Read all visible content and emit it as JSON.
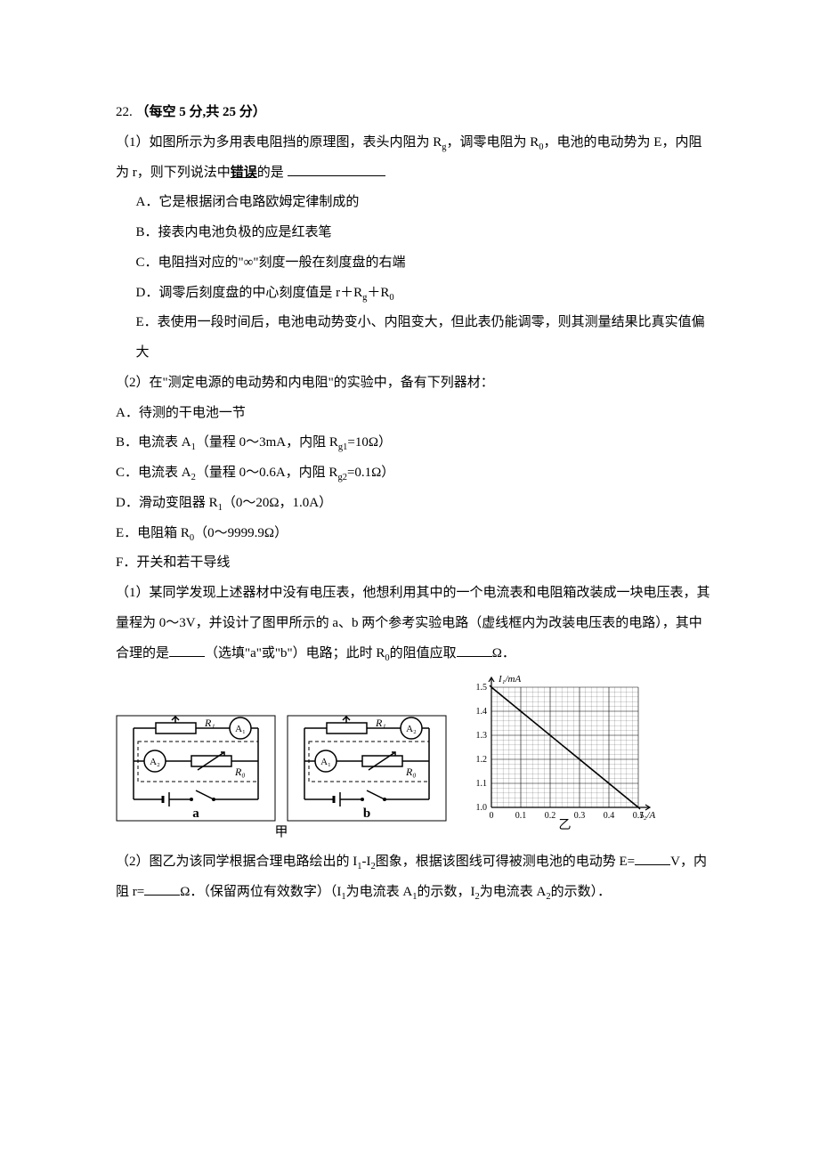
{
  "q": {
    "num": "22.",
    "score": "（每空 5 分,共 25 分）",
    "p1_intro": "（1）如图所示为多用表电阻挡的原理图，表头内阻为 R",
    "p1_sub1": "g",
    "p1_mid": "，调零电阻为 R",
    "p1_sub2": "0",
    "p1_mid2": "，电池的电动势为 E，内阻为 r，则下列说法中",
    "p1_bold": "错误",
    "p1_tail": "的是",
    "A": "A．它是根据闭合电路欧姆定律制成的",
    "B": "B．接表内电池负极的应是红表笔",
    "C": "C．电阻挡对应的\"∞\"刻度一般在刻度盘的右端",
    "D_pre": "D．调零后刻度盘的中心刻度值是 r＋R",
    "D_sub1": "g",
    "D_mid": "＋R",
    "D_sub2": "0",
    "E": "E．表使用一段时间后，电池电动势变小、内阻变大，但此表仍能调零，则其测量结果比真实值偏大",
    "p2_intro": "（2）在\"测定电源的电动势和内电阻\"的实验中，备有下列器材：",
    "mA": "A．待测的干电池一节",
    "mB_pre": "B．电流表 A",
    "mB_sub": "1",
    "mB_mid": "（量程 0～3mA，内阻 R",
    "mB_sub2": "g1",
    "mB_tail": "=10Ω）",
    "mC_pre": "C．电流表 A",
    "mC_sub": "2",
    "mC_mid": "（量程 0～0.6A，内阻 R",
    "mC_sub2": "g2",
    "mC_tail": "=0.1Ω）",
    "mD_pre": "D．滑动变阻器 R",
    "mD_sub": "1",
    "mD_tail": "（0～20Ω，1.0A）",
    "mE_pre": "E．电阻箱 R",
    "mE_sub": "0",
    "mE_tail": "（0～9999.9Ω）",
    "mF": "F．开关和若干导线",
    "sub1_a": "（1）某同学发现上述器材中没有电压表，他想利用其中的一个电流表和电阻箱改装成一块电压表，其量程为 0～3V，并设计了图甲所示的 a、b 两个参考实验电路（虚线框内为改装电压表的电路），其中合理的是",
    "sub1_b": "（选填\"a\"或\"b\"）电路；此时 R",
    "sub1_sub": "0",
    "sub1_c": "的阻值应取",
    "sub1_d": "Ω．",
    "sub2_a": "（2）图乙为该同学根据合理电路绘出的 I",
    "sub2_s1": "1",
    "sub2_b": "‐I",
    "sub2_s2": "2",
    "sub2_c": "图象，根据该图线可得被测电池的电动势 E=",
    "sub2_d": "V，内阻 r=",
    "sub2_e": "Ω．（保留两位有效数字）（I",
    "sub2_s3": "1",
    "sub2_f": "为电流表 A",
    "sub2_s4": "1",
    "sub2_g": "的示数，I",
    "sub2_s5": "2",
    "sub2_h": "为电流表 A",
    "sub2_s6": "2",
    "sub2_i": "的示数）．"
  },
  "circuit": {
    "a_label": "a",
    "b_label": "b",
    "caption": "甲",
    "graph_caption": "乙",
    "R1": "R₁",
    "R0": "R₀",
    "A1": "A₁",
    "A2": "A₂",
    "frame_color": "#000000",
    "dash_color": "#000000",
    "bg": "#ffffff"
  },
  "graph": {
    "y_label": "I₁/mA",
    "x_label": "I₂/A",
    "x_ticks": [
      "0",
      "0.1",
      "0.2",
      "0.3",
      "0.4",
      "0.5"
    ],
    "y_ticks": [
      "1.0",
      "1.1",
      "1.2",
      "1.3",
      "1.4",
      "1.5"
    ],
    "x_range": [
      0,
      0.5
    ],
    "y_range": [
      1.0,
      1.5
    ],
    "grid_step": 0.02,
    "line_points": [
      [
        0,
        1.5
      ],
      [
        0.5,
        1.0
      ]
    ],
    "line_color": "#000000",
    "grid_color": "#000000",
    "grid_minor_w": 0.15,
    "grid_major_w": 0.6,
    "axis_w": 1.2
  }
}
